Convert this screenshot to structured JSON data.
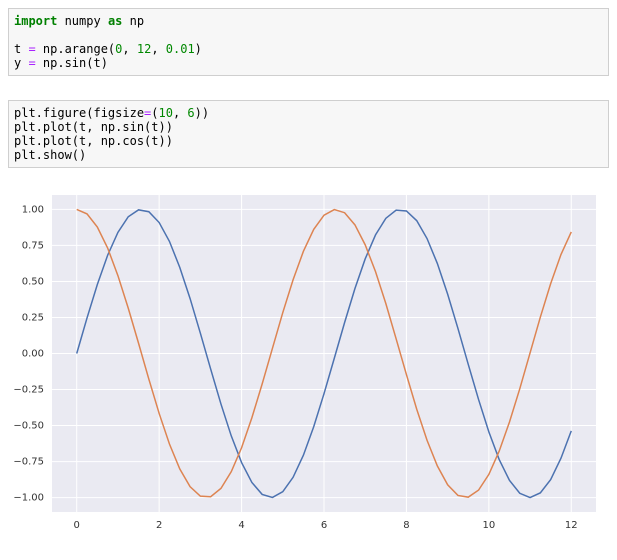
{
  "cells": [
    {
      "lines": [
        [
          {
            "text": "import",
            "color": "#008000",
            "bold": true
          },
          {
            "text": " numpy "
          },
          {
            "text": "as",
            "color": "#008000",
            "bold": true
          },
          {
            "text": " np"
          }
        ],
        [],
        [
          {
            "text": "t "
          },
          {
            "text": "=",
            "color": "#aa22ff"
          },
          {
            "text": " np.arange("
          },
          {
            "text": "0",
            "color": "#008800"
          },
          {
            "text": ", "
          },
          {
            "text": "12",
            "color": "#008800"
          },
          {
            "text": ", "
          },
          {
            "text": "0.01",
            "color": "#008800"
          },
          {
            "text": ")"
          }
        ],
        [
          {
            "text": "y "
          },
          {
            "text": "=",
            "color": "#aa22ff"
          },
          {
            "text": " np.sin(t)"
          }
        ]
      ]
    },
    {
      "lines": [
        [
          {
            "text": "plt.figure(figsize"
          },
          {
            "text": "=",
            "color": "#aa22ff"
          },
          {
            "text": "("
          },
          {
            "text": "10",
            "color": "#008800"
          },
          {
            "text": ", "
          },
          {
            "text": "6",
            "color": "#008800"
          },
          {
            "text": "))"
          }
        ],
        [
          {
            "text": "plt.plot(t, np.sin(t))"
          }
        ],
        [
          {
            "text": "plt.plot(t, np.cos(t))"
          }
        ],
        [
          {
            "text": "plt.show()"
          }
        ]
      ]
    }
  ],
  "chart_data": {
    "type": "line",
    "grid": true,
    "background": "#eaeaf2",
    "x": [
      0,
      0.25,
      0.5,
      0.75,
      1,
      1.25,
      1.5,
      1.75,
      2,
      2.25,
      2.5,
      2.75,
      3,
      3.25,
      3.5,
      3.75,
      4,
      4.25,
      4.5,
      4.75,
      5,
      5.25,
      5.5,
      5.75,
      6,
      6.25,
      6.5,
      6.75,
      7,
      7.25,
      7.5,
      7.75,
      8,
      8.25,
      8.5,
      8.75,
      9,
      9.25,
      9.5,
      9.75,
      10,
      10.25,
      10.5,
      10.75,
      11,
      11.25,
      11.5,
      11.75,
      12
    ],
    "series": [
      {
        "color": "#4c72b0",
        "values": [
          0,
          0.247,
          0.479,
          0.682,
          0.841,
          0.949,
          0.997,
          0.984,
          0.909,
          0.778,
          0.598,
          0.382,
          0.141,
          -0.108,
          -0.351,
          -0.572,
          -0.757,
          -0.895,
          -0.978,
          -0.999,
          -0.959,
          -0.859,
          -0.706,
          -0.508,
          -0.279,
          -0.033,
          0.215,
          0.45,
          0.657,
          0.823,
          0.938,
          0.995,
          0.989,
          0.922,
          0.798,
          0.625,
          0.412,
          0.174,
          -0.075,
          -0.319,
          -0.544,
          -0.735,
          -0.88,
          -0.97,
          -1,
          -0.967,
          -0.875,
          -0.727,
          -0.537
        ]
      },
      {
        "color": "#dd8452",
        "values": [
          1,
          0.969,
          0.878,
          0.732,
          0.54,
          0.315,
          0.071,
          -0.178,
          -0.416,
          -0.628,
          -0.801,
          -0.924,
          -0.99,
          -0.994,
          -0.936,
          -0.82,
          -0.654,
          -0.446,
          -0.211,
          0.037,
          0.284,
          0.512,
          0.709,
          0.861,
          0.96,
          0.999,
          0.977,
          0.893,
          0.754,
          0.568,
          0.347,
          0.102,
          -0.146,
          -0.387,
          -0.602,
          -0.78,
          -0.911,
          -0.985,
          -0.997,
          -0.948,
          -0.839,
          -0.678,
          -0.476,
          -0.245,
          0.004,
          0.253,
          0.485,
          0.687,
          0.844
        ]
      }
    ],
    "xlim": [
      -0.6,
      12.6
    ],
    "ylim": [
      -1.1,
      1.1
    ],
    "xticks": [
      0,
      2,
      4,
      6,
      8,
      10,
      12
    ],
    "yticks": [
      {
        "value": -1,
        "label": "−1.00"
      },
      {
        "value": -0.75,
        "label": "−0.75"
      },
      {
        "value": -0.5,
        "label": "−0.50"
      },
      {
        "value": -0.25,
        "label": "−0.25"
      },
      {
        "value": 0,
        "label": "0.00"
      },
      {
        "value": 0.25,
        "label": "0.25"
      },
      {
        "value": 0.5,
        "label": "0.50"
      },
      {
        "value": 0.75,
        "label": "0.75"
      },
      {
        "value": 1,
        "label": "1.00"
      }
    ]
  }
}
